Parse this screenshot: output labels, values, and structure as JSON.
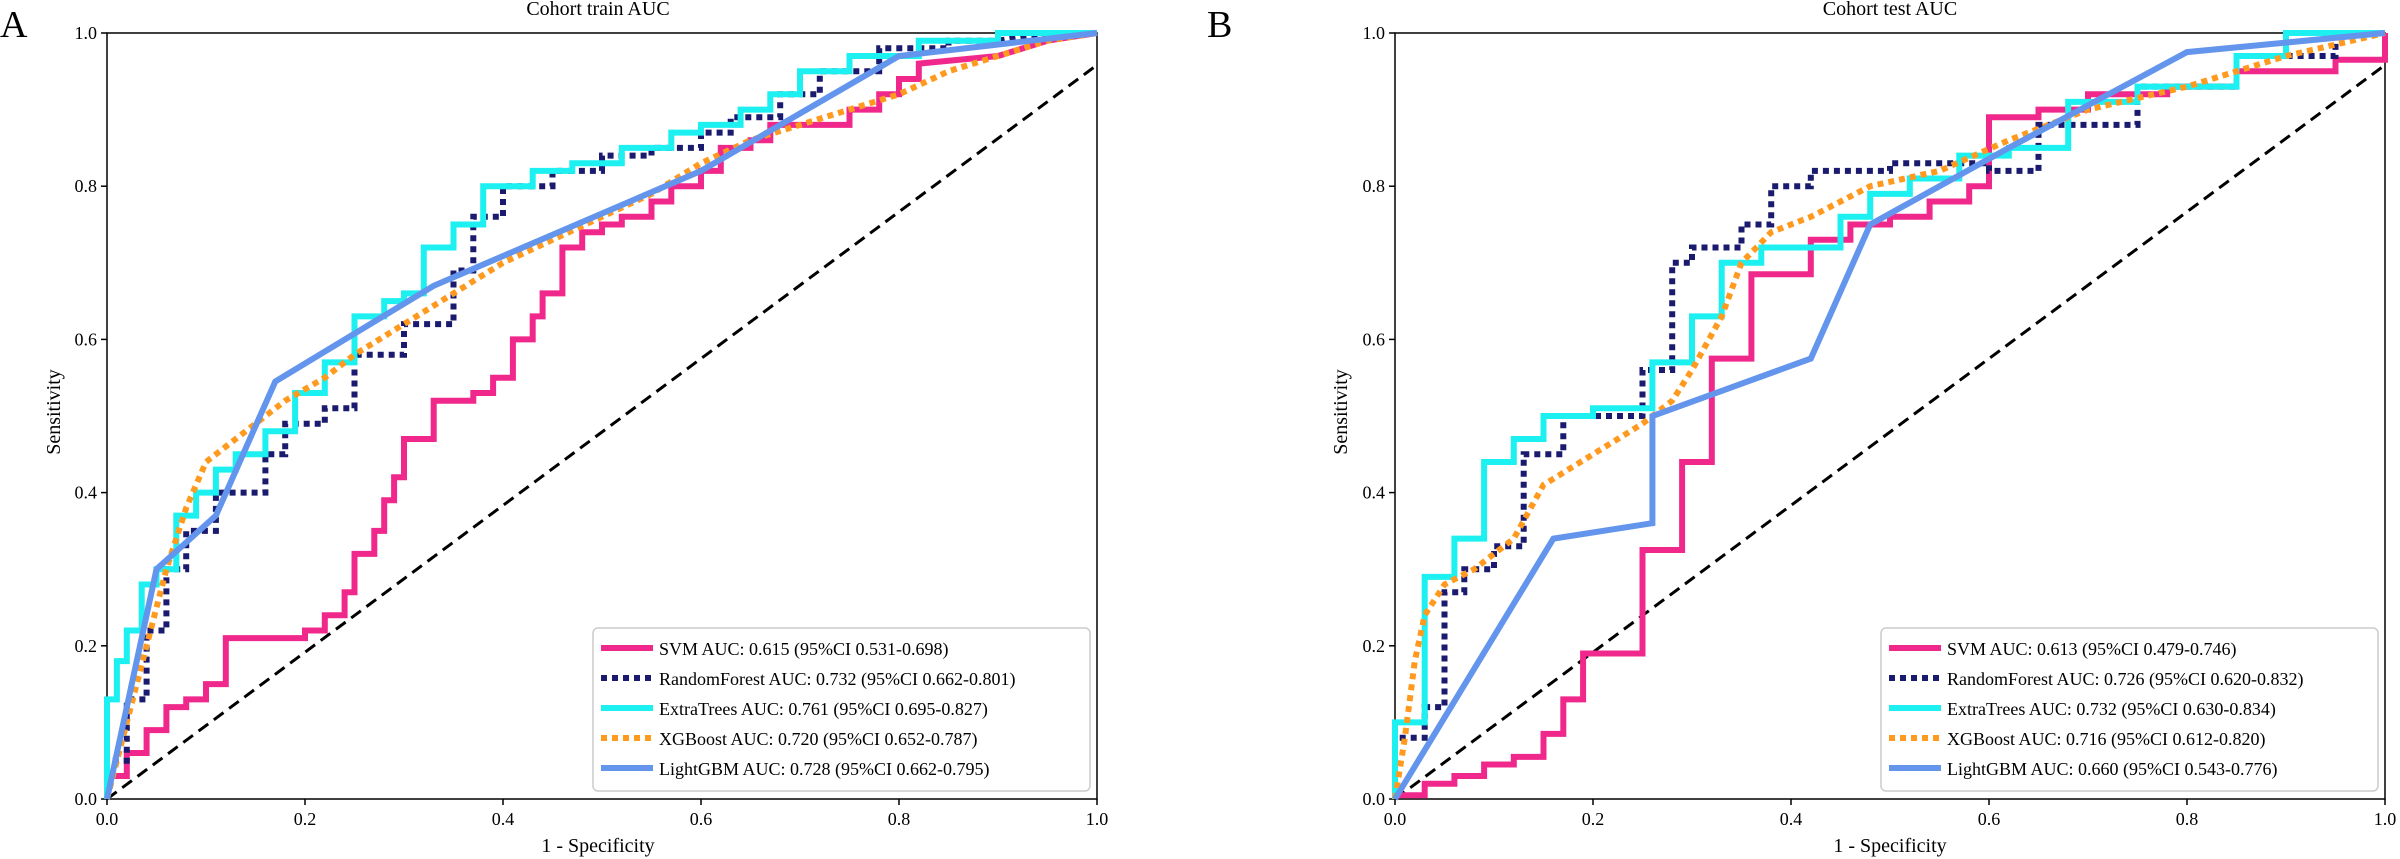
{
  "chart_data": [
    {
      "type": "line",
      "panel_label": "A",
      "title": "Cohort train AUC",
      "xlabel": "1 - Specificity",
      "ylabel": "Sensitivity",
      "xlim": [
        0,
        1
      ],
      "ylim": [
        0,
        1
      ],
      "ticks": [
        "0.0",
        "0.2",
        "0.4",
        "0.6",
        "0.8",
        "1.0"
      ],
      "legend_position": "lower-right",
      "series": [
        {
          "name": "SVM",
          "legend": "SVM AUC: 0.615 (95%CI 0.531-0.698)",
          "color": "#f0288c",
          "style": "solid",
          "x": [
            0,
            0,
            0.02,
            0.02,
            0.04,
            0.04,
            0.06,
            0.06,
            0.08,
            0.08,
            0.1,
            0.1,
            0.12,
            0.12,
            0.2,
            0.2,
            0.22,
            0.22,
            0.24,
            0.24,
            0.25,
            0.25,
            0.27,
            0.27,
            0.28,
            0.28,
            0.29,
            0.29,
            0.3,
            0.3,
            0.33,
            0.33,
            0.37,
            0.37,
            0.39,
            0.39,
            0.41,
            0.41,
            0.43,
            0.43,
            0.44,
            0.44,
            0.46,
            0.46,
            0.48,
            0.48,
            0.5,
            0.5,
            0.52,
            0.52,
            0.55,
            0.55,
            0.57,
            0.57,
            0.6,
            0.6,
            0.62,
            0.62,
            0.65,
            0.65,
            0.67,
            0.67,
            0.75,
            0.75,
            0.78,
            0.78,
            0.8,
            0.8,
            0.82,
            0.82,
            0.9,
            0.95,
            1.0
          ],
          "y": [
            0,
            0.03,
            0.03,
            0.06,
            0.06,
            0.09,
            0.09,
            0.12,
            0.12,
            0.13,
            0.13,
            0.15,
            0.15,
            0.21,
            0.21,
            0.22,
            0.22,
            0.24,
            0.24,
            0.27,
            0.27,
            0.32,
            0.32,
            0.35,
            0.35,
            0.39,
            0.39,
            0.42,
            0.42,
            0.47,
            0.47,
            0.52,
            0.52,
            0.53,
            0.53,
            0.55,
            0.55,
            0.6,
            0.6,
            0.63,
            0.63,
            0.66,
            0.66,
            0.72,
            0.72,
            0.74,
            0.74,
            0.75,
            0.75,
            0.76,
            0.76,
            0.78,
            0.78,
            0.8,
            0.8,
            0.82,
            0.82,
            0.85,
            0.85,
            0.86,
            0.86,
            0.88,
            0.88,
            0.9,
            0.9,
            0.92,
            0.92,
            0.94,
            0.94,
            0.96,
            0.97,
            0.99,
            1.0
          ]
        },
        {
          "name": "RandomForest",
          "legend": "RandomForest AUC: 0.732 (95%CI 0.662-0.801)",
          "color": "#1a1a6e",
          "style": "dotted",
          "x": [
            0,
            0,
            0.02,
            0.02,
            0.04,
            0.04,
            0.06,
            0.06,
            0.08,
            0.08,
            0.11,
            0.11,
            0.16,
            0.16,
            0.18,
            0.18,
            0.22,
            0.22,
            0.25,
            0.25,
            0.3,
            0.3,
            0.35,
            0.35,
            0.37,
            0.37,
            0.4,
            0.4,
            0.45,
            0.45,
            0.5,
            0.5,
            0.55,
            0.55,
            0.6,
            0.6,
            0.63,
            0.63,
            0.68,
            0.68,
            0.72,
            0.72,
            0.78,
            0.78,
            0.85,
            0.85,
            0.9,
            0.95,
            1.0
          ],
          "y": [
            0,
            0.05,
            0.05,
            0.13,
            0.13,
            0.22,
            0.22,
            0.3,
            0.3,
            0.35,
            0.35,
            0.4,
            0.4,
            0.45,
            0.45,
            0.49,
            0.49,
            0.51,
            0.51,
            0.58,
            0.58,
            0.62,
            0.62,
            0.69,
            0.69,
            0.76,
            0.76,
            0.8,
            0.8,
            0.82,
            0.82,
            0.84,
            0.84,
            0.85,
            0.85,
            0.87,
            0.87,
            0.89,
            0.89,
            0.92,
            0.92,
            0.95,
            0.95,
            0.98,
            0.98,
            0.99,
            0.99,
            1.0,
            1.0
          ]
        },
        {
          "name": "ExtraTrees",
          "legend": "ExtraTrees AUC: 0.761 (95%CI 0.695-0.827)",
          "color": "#1cf0f0",
          "style": "solid",
          "x": [
            0,
            0,
            0.01,
            0.01,
            0.02,
            0.02,
            0.035,
            0.035,
            0.05,
            0.05,
            0.07,
            0.07,
            0.09,
            0.09,
            0.11,
            0.11,
            0.13,
            0.13,
            0.16,
            0.16,
            0.19,
            0.19,
            0.22,
            0.22,
            0.25,
            0.25,
            0.28,
            0.28,
            0.3,
            0.3,
            0.32,
            0.32,
            0.35,
            0.35,
            0.38,
            0.38,
            0.43,
            0.43,
            0.47,
            0.47,
            0.52,
            0.52,
            0.57,
            0.57,
            0.6,
            0.6,
            0.64,
            0.64,
            0.67,
            0.67,
            0.7,
            0.7,
            0.75,
            0.75,
            0.82,
            0.82,
            0.9,
            0.9,
            1.0
          ],
          "y": [
            0,
            0.13,
            0.13,
            0.18,
            0.18,
            0.22,
            0.22,
            0.28,
            0.28,
            0.3,
            0.3,
            0.37,
            0.37,
            0.4,
            0.4,
            0.43,
            0.43,
            0.45,
            0.45,
            0.48,
            0.48,
            0.53,
            0.53,
            0.57,
            0.57,
            0.63,
            0.63,
            0.65,
            0.65,
            0.66,
            0.66,
            0.72,
            0.72,
            0.75,
            0.75,
            0.8,
            0.8,
            0.82,
            0.82,
            0.83,
            0.83,
            0.85,
            0.85,
            0.87,
            0.87,
            0.88,
            0.88,
            0.9,
            0.9,
            0.92,
            0.92,
            0.95,
            0.95,
            0.97,
            0.97,
            0.99,
            0.99,
            1.0,
            1.0
          ]
        },
        {
          "name": "XGBoost",
          "legend": "XGBoost AUC: 0.720 (95%CI 0.652-0.787)",
          "color": "#ff9a1f",
          "style": "dotted",
          "x": [
            0,
            0.02,
            0.04,
            0.06,
            0.08,
            0.1,
            0.12,
            0.15,
            0.18,
            0.22,
            0.25,
            0.3,
            0.35,
            0.4,
            0.45,
            0.5,
            0.55,
            0.6,
            0.65,
            0.7,
            0.75,
            0.8,
            0.85,
            0.9,
            0.95,
            1.0
          ],
          "y": [
            0,
            0.1,
            0.2,
            0.3,
            0.38,
            0.44,
            0.46,
            0.49,
            0.52,
            0.55,
            0.58,
            0.62,
            0.66,
            0.7,
            0.73,
            0.76,
            0.79,
            0.83,
            0.86,
            0.88,
            0.9,
            0.92,
            0.95,
            0.97,
            0.99,
            1.0
          ]
        },
        {
          "name": "LightGBM",
          "legend": "LightGBM AUC: 0.728 (95%CI 0.662-0.795)",
          "color": "#6495ed",
          "style": "solid",
          "x": [
            0,
            0.05,
            0.11,
            0.17,
            0.33,
            0.6,
            0.8,
            1.0
          ],
          "y": [
            0,
            0.3,
            0.37,
            0.545,
            0.67,
            0.82,
            0.97,
            1.0
          ]
        }
      ]
    },
    {
      "type": "line",
      "panel_label": "B",
      "title": "Cohort test AUC",
      "xlabel": "1 - Specificity",
      "ylabel": "Sensitivity",
      "xlim": [
        0,
        1
      ],
      "ylim": [
        0,
        1
      ],
      "ticks": [
        "0.0",
        "0.2",
        "0.4",
        "0.6",
        "0.8",
        "1.0"
      ],
      "legend_position": "lower-right",
      "series": [
        {
          "name": "SVM",
          "legend": "SVM AUC: 0.613 (95%CI 0.479-0.746)",
          "color": "#f0288c",
          "style": "solid",
          "x": [
            0,
            0,
            0.03,
            0.03,
            0.06,
            0.06,
            0.09,
            0.09,
            0.12,
            0.12,
            0.15,
            0.15,
            0.17,
            0.17,
            0.19,
            0.19,
            0.25,
            0.25,
            0.29,
            0.29,
            0.32,
            0.32,
            0.36,
            0.36,
            0.42,
            0.42,
            0.46,
            0.46,
            0.5,
            0.5,
            0.54,
            0.54,
            0.58,
            0.58,
            0.6,
            0.6,
            0.65,
            0.65,
            0.7,
            0.7,
            0.78,
            0.78,
            0.85,
            0.85,
            0.95,
            0.95,
            1.0,
            1.0
          ],
          "y": [
            0,
            0.005,
            0.005,
            0.02,
            0.02,
            0.03,
            0.03,
            0.045,
            0.045,
            0.055,
            0.055,
            0.085,
            0.085,
            0.13,
            0.13,
            0.19,
            0.19,
            0.325,
            0.325,
            0.44,
            0.44,
            0.575,
            0.575,
            0.685,
            0.685,
            0.73,
            0.73,
            0.75,
            0.75,
            0.76,
            0.76,
            0.78,
            0.78,
            0.8,
            0.8,
            0.89,
            0.89,
            0.9,
            0.9,
            0.92,
            0.92,
            0.93,
            0.93,
            0.95,
            0.95,
            0.965,
            0.965,
            1.0
          ]
        },
        {
          "name": "RandomForest",
          "legend": "RandomForest AUC: 0.726 (95%CI 0.620-0.832)",
          "color": "#1a1a6e",
          "style": "dotted",
          "x": [
            0,
            0,
            0.03,
            0.03,
            0.05,
            0.05,
            0.07,
            0.07,
            0.1,
            0.1,
            0.13,
            0.13,
            0.17,
            0.17,
            0.25,
            0.25,
            0.28,
            0.28,
            0.3,
            0.3,
            0.35,
            0.35,
            0.38,
            0.38,
            0.42,
            0.42,
            0.5,
            0.5,
            0.6,
            0.6,
            0.65,
            0.65,
            0.75,
            0.75,
            0.85,
            0.85,
            0.95,
            0.95,
            1.0
          ],
          "y": [
            0,
            0.08,
            0.08,
            0.12,
            0.12,
            0.27,
            0.27,
            0.3,
            0.3,
            0.33,
            0.33,
            0.45,
            0.45,
            0.5,
            0.5,
            0.56,
            0.56,
            0.7,
            0.7,
            0.72,
            0.72,
            0.75,
            0.75,
            0.8,
            0.8,
            0.82,
            0.82,
            0.83,
            0.83,
            0.82,
            0.82,
            0.88,
            0.88,
            0.93,
            0.93,
            0.97,
            0.97,
            1.0,
            1.0
          ]
        },
        {
          "name": "ExtraTrees",
          "legend": "ExtraTrees AUC: 0.732 (95%CI 0.630-0.834)",
          "color": "#1cf0f0",
          "style": "solid",
          "x": [
            0,
            0,
            0.03,
            0.03,
            0.06,
            0.06,
            0.09,
            0.09,
            0.12,
            0.12,
            0.15,
            0.15,
            0.2,
            0.2,
            0.26,
            0.26,
            0.3,
            0.3,
            0.33,
            0.33,
            0.37,
            0.37,
            0.45,
            0.45,
            0.48,
            0.48,
            0.52,
            0.52,
            0.57,
            0.57,
            0.62,
            0.62,
            0.68,
            0.68,
            0.75,
            0.75,
            0.85,
            0.85,
            0.9,
            0.9,
            1.0
          ],
          "y": [
            0,
            0.1,
            0.1,
            0.29,
            0.29,
            0.34,
            0.34,
            0.44,
            0.44,
            0.47,
            0.47,
            0.5,
            0.5,
            0.51,
            0.51,
            0.57,
            0.57,
            0.63,
            0.63,
            0.7,
            0.7,
            0.72,
            0.72,
            0.76,
            0.76,
            0.79,
            0.79,
            0.81,
            0.81,
            0.84,
            0.84,
            0.85,
            0.85,
            0.91,
            0.91,
            0.93,
            0.93,
            0.97,
            0.97,
            1.0,
            1.0
          ]
        },
        {
          "name": "XGBoost",
          "legend": "XGBoost AUC: 0.716 (95%CI 0.612-0.820)",
          "color": "#ff9a1f",
          "style": "dotted",
          "x": [
            0,
            0.01,
            0.02,
            0.03,
            0.05,
            0.08,
            0.12,
            0.15,
            0.2,
            0.25,
            0.28,
            0.3,
            0.33,
            0.35,
            0.38,
            0.42,
            0.48,
            0.55,
            0.62,
            0.7,
            0.8,
            0.9,
            1.0
          ],
          "y": [
            0,
            0.08,
            0.18,
            0.24,
            0.28,
            0.3,
            0.34,
            0.41,
            0.45,
            0.49,
            0.52,
            0.56,
            0.63,
            0.7,
            0.74,
            0.76,
            0.8,
            0.82,
            0.86,
            0.9,
            0.93,
            0.97,
            1.0
          ]
        },
        {
          "name": "LightGBM",
          "legend": "LightGBM AUC: 0.660 (95%CI 0.543-0.776)",
          "color": "#6495ed",
          "style": "solid",
          "x": [
            0,
            0.16,
            0.26,
            0.26,
            0.42,
            0.48,
            0.62,
            0.8,
            1.0
          ],
          "y": [
            0,
            0.34,
            0.36,
            0.5,
            0.575,
            0.75,
            0.85,
            0.975,
            1.0
          ]
        }
      ]
    }
  ]
}
